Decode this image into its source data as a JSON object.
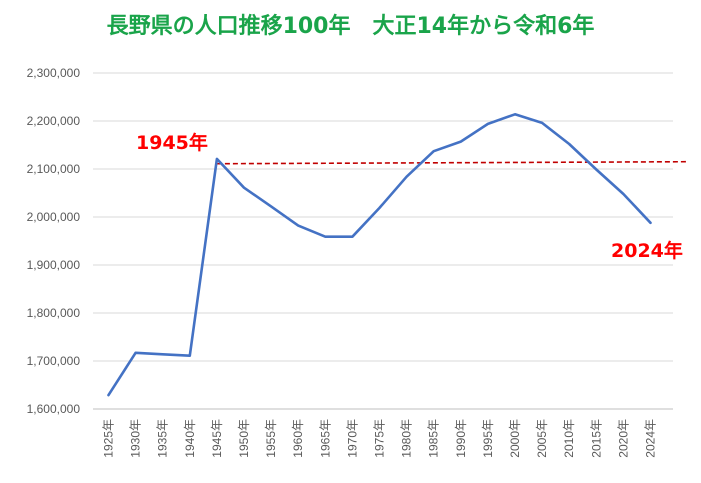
{
  "title": "長野県の人口推移100年　大正14年から令和6年",
  "annotations": [
    {
      "label": "1945年",
      "category": "1945年"
    },
    {
      "label": "2024年",
      "category": "2024年"
    }
  ],
  "chart_data": {
    "type": "line",
    "title": "長野県の人口推移100年　大正14年から令和6年",
    "xlabel": "",
    "ylabel": "",
    "categories": [
      "1925年",
      "1930年",
      "1935年",
      "1940年",
      "1945年",
      "1950年",
      "1955年",
      "1960年",
      "1965年",
      "1970年",
      "1975年",
      "1980年",
      "1985年",
      "1990年",
      "1995年",
      "2000年",
      "2005年",
      "2010年",
      "2015年",
      "2020年",
      "2024年"
    ],
    "series": [
      {
        "values": [
          1629000,
          1717000,
          1714000,
          1711000,
          2121000,
          2061000,
          2022000,
          1982000,
          1959000,
          1959000,
          2019000,
          2084000,
          2137000,
          2157000,
          2194000,
          2214000,
          2196000,
          2152000,
          2099000,
          2048000,
          1988000
        ],
        "color": "#4472c4"
      }
    ],
    "reference_line": {
      "value": 2111000,
      "from_category": "1945年",
      "style": "dashed",
      "color": "#c00000"
    },
    "ylim": [
      1600000,
      2300000
    ],
    "yticks": [
      1600000,
      1700000,
      1800000,
      1900000,
      2000000,
      2100000,
      2200000,
      2300000
    ],
    "ytick_labels": [
      "1,600,000",
      "1,700,000",
      "1,800,000",
      "1,900,000",
      "2,000,000",
      "2,100,000",
      "2,200,000",
      "2,300,000"
    ],
    "grid": true,
    "legend": "none"
  }
}
